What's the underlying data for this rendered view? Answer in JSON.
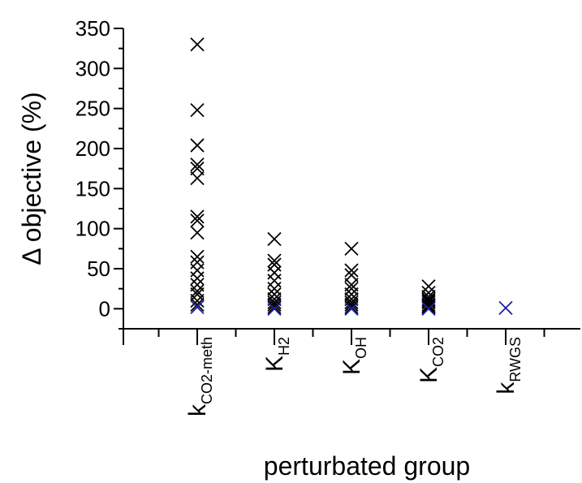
{
  "chart_data": {
    "type": "scatter",
    "xlabel": "perturbated group",
    "ylabel": "Δ objective (%)",
    "categories": [
      {
        "main": "k",
        "sub": "CO2-meth"
      },
      {
        "main": "K",
        "sub": "H2"
      },
      {
        "main": "K",
        "sub": "OH"
      },
      {
        "main": "K",
        "sub": "CO2"
      },
      {
        "main": "k",
        "sub": "RWGS"
      }
    ],
    "series": [
      {
        "color": "#000000",
        "values": [
          [
            330,
            248,
            204,
            180,
            175,
            163,
            115,
            110,
            95,
            65,
            58,
            48,
            38,
            30,
            22,
            18,
            10,
            5
          ],
          [
            87,
            60,
            55,
            45,
            35,
            25,
            18,
            12,
            8,
            5,
            2
          ],
          [
            75,
            48,
            42,
            30,
            25,
            18,
            12,
            8,
            5,
            2
          ],
          [
            28,
            20,
            15,
            12,
            10,
            8,
            5,
            3,
            2
          ],
          []
        ]
      },
      {
        "color": "#1f1f9e",
        "values": [
          [
            2
          ],
          [
            0
          ],
          [
            0
          ],
          [
            0
          ],
          [
            1
          ]
        ]
      }
    ],
    "ylim": [
      -25,
      350
    ],
    "yticks": [
      0,
      50,
      100,
      150,
      200,
      250,
      300,
      350
    ],
    "yminor_ticks": [
      -25,
      25,
      75,
      125,
      175,
      225,
      275,
      325
    ]
  }
}
